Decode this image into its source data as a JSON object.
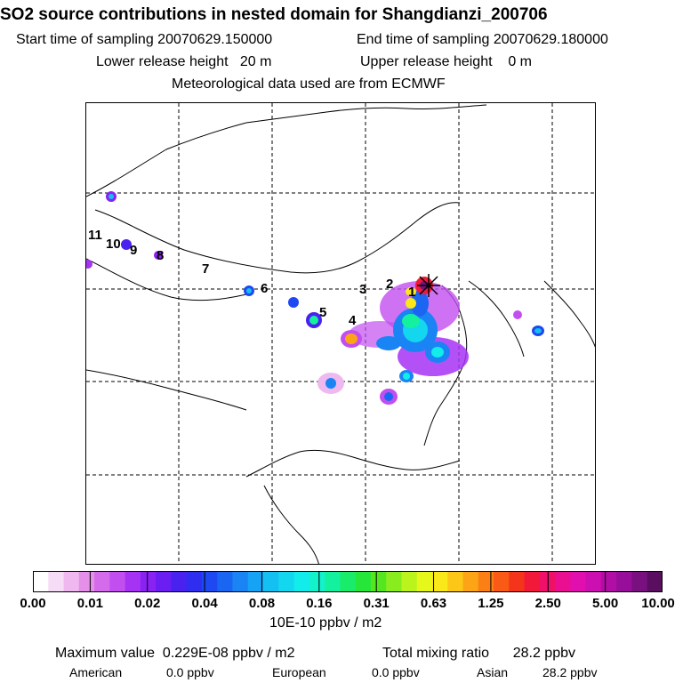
{
  "header": {
    "title": "SO2 source contributions in nested domain for Shangdianzi_200706",
    "start_label": "Start time of sampling 20070629.150000",
    "end_label": "End time of sampling 20070629.180000",
    "lower_label": "Lower release height   20 m",
    "upper_label": "Upper release height    0 m",
    "met_label": "Meteorological data used are from ECMWF"
  },
  "map": {
    "region_labels": [
      "1",
      "2",
      "3",
      "4",
      "5",
      "6",
      "7",
      "8",
      "9",
      "10",
      "11"
    ],
    "receptor": "Shangdianzi"
  },
  "legend": {
    "ticks": [
      "0.00",
      "0.01",
      "0.02",
      "0.04",
      "0.08",
      "0.16",
      "0.31",
      "0.63",
      "1.25",
      "2.50",
      "5.00",
      "10.00"
    ],
    "unit": "10E-10 ppbv / m2",
    "colors": [
      "#ffffff",
      "#f7dcf7",
      "#efb8ef",
      "#e48fe8",
      "#d46bea",
      "#c34ef0",
      "#a633f4",
      "#8a22f4",
      "#6a1ef2",
      "#4a22ef",
      "#2f2ef0",
      "#1e48f2",
      "#1a66f3",
      "#1a84f4",
      "#17a3f5",
      "#14bff2",
      "#13d7ee",
      "#12ecea",
      "#12f3cc",
      "#14f19e",
      "#19ec6b",
      "#26e63a",
      "#55e622",
      "#88ec1f",
      "#baf41c",
      "#e6f81b",
      "#fbe81a",
      "#fdc718",
      "#fca416",
      "#fb7f14",
      "#f95a16",
      "#f5341c",
      "#f2183a",
      "#ef1068",
      "#ea0f90",
      "#e00fae",
      "#cc0fb0",
      "#b20ea6",
      "#960e99",
      "#78107f",
      "#5a0e60"
    ]
  },
  "footer": {
    "max_label": "Maximum value  0.229E-08 ppbv / m2",
    "total_label": "Total mixing ratio      28.2 ppbv",
    "american_label": "American",
    "american_value": "0.0 ppbv",
    "european_label": "European",
    "european_value": "0.0 ppbv",
    "asian_label": "Asian",
    "asian_value": "28.2 ppbv"
  }
}
